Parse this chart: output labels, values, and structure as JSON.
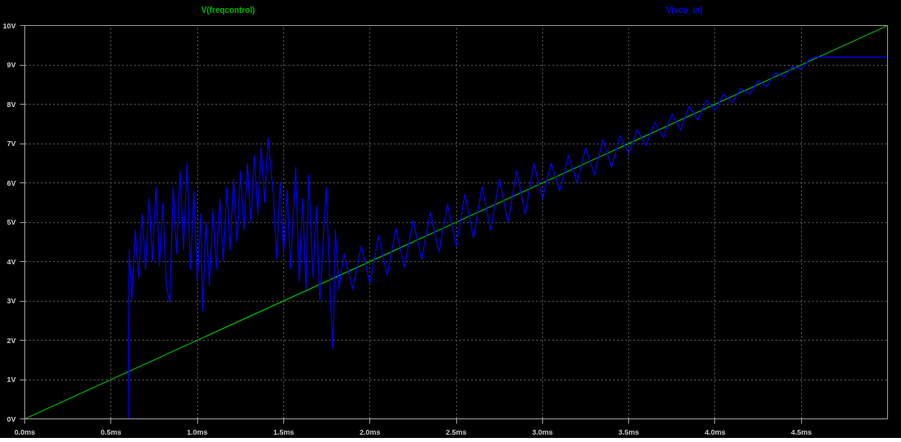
{
  "chart_data": {
    "type": "line",
    "xlim": [
      0,
      5
    ],
    "ylim": [
      0,
      10
    ],
    "xticks": [
      {
        "value": 0,
        "label": "0.0ms"
      },
      {
        "value": 0.5,
        "label": "0.5ms"
      },
      {
        "value": 1,
        "label": "1.0ms"
      },
      {
        "value": 1.5,
        "label": "1.5ms"
      },
      {
        "value": 2,
        "label": "2.0ms"
      },
      {
        "value": 2.5,
        "label": "2.5ms"
      },
      {
        "value": 3,
        "label": "3.0ms"
      },
      {
        "value": 3.5,
        "label": "3.5ms"
      },
      {
        "value": 4,
        "label": "4.0ms"
      },
      {
        "value": 4.5,
        "label": "4.5ms"
      }
    ],
    "yticks": [
      {
        "value": 0,
        "label": "0V"
      },
      {
        "value": 1,
        "label": "1V"
      },
      {
        "value": 2,
        "label": "2V"
      },
      {
        "value": 3,
        "label": "3V"
      },
      {
        "value": 4,
        "label": "4V"
      },
      {
        "value": 5,
        "label": "5V"
      },
      {
        "value": 6,
        "label": "6V"
      },
      {
        "value": 7,
        "label": "7V"
      },
      {
        "value": 8,
        "label": "8V"
      },
      {
        "value": 9,
        "label": "9V"
      },
      {
        "value": 10,
        "label": "10V"
      }
    ],
    "grid": true,
    "marker": "none",
    "line_style": "solid",
    "series": [
      {
        "name": "V(freqcontrol)",
        "color": "#00b400",
        "x": [
          0,
          5
        ],
        "values": [
          0,
          10
        ]
      },
      {
        "name": "V(vco_in)",
        "color": "#0000ff",
        "x": [
          0,
          0.6,
          0.605,
          0.62,
          0.64,
          0.66,
          0.68,
          0.7,
          0.72,
          0.74,
          0.76,
          0.78,
          0.8,
          0.82,
          0.84,
          0.86,
          0.88,
          0.9,
          0.92,
          0.94,
          0.96,
          0.98,
          1.0,
          1.02,
          1.03,
          1.05,
          1.07,
          1.09,
          1.11,
          1.13,
          1.15,
          1.17,
          1.19,
          1.21,
          1.23,
          1.25,
          1.27,
          1.29,
          1.31,
          1.33,
          1.35,
          1.37,
          1.39,
          1.41,
          1.44,
          1.46,
          1.48,
          1.5,
          1.52,
          1.54,
          1.57,
          1.59,
          1.61,
          1.63,
          1.645,
          1.67,
          1.69,
          1.71,
          1.73,
          1.747,
          1.77,
          1.786,
          1.8,
          1.82,
          1.85,
          1.9,
          1.95,
          2.0,
          2.05,
          2.1,
          2.15,
          2.2,
          2.25,
          2.3,
          2.35,
          2.4,
          2.45,
          2.5,
          2.55,
          2.6,
          2.65,
          2.7,
          2.75,
          2.8,
          2.85,
          2.9,
          2.95,
          3.0,
          3.05,
          3.1,
          3.15,
          3.2,
          3.25,
          3.3,
          3.35,
          3.4,
          3.45,
          3.5,
          3.55,
          3.6,
          3.65,
          3.7,
          3.75,
          3.8,
          3.85,
          3.9,
          3.95,
          4.0,
          4.05,
          4.1,
          4.15,
          4.2,
          4.25,
          4.3,
          4.35,
          4.4,
          4.45,
          4.5,
          4.55,
          4.58,
          5.0
        ],
        "values": [
          0,
          0,
          4.3,
          3.0,
          4.8,
          3.6,
          5.2,
          3.8,
          5.6,
          4.0,
          5.9,
          3.9,
          5.5,
          3.4,
          2.95,
          5.9,
          4.2,
          6.3,
          4.3,
          6.5,
          3.8,
          5.8,
          3.5,
          5.2,
          2.75,
          5.0,
          3.4,
          5.3,
          3.8,
          5.6,
          4.0,
          5.9,
          4.3,
          6.1,
          4.5,
          6.3,
          4.8,
          6.5,
          5.0,
          6.7,
          5.2,
          6.9,
          5.5,
          7.15,
          5.7,
          4.07,
          6.0,
          4.2,
          5.8,
          3.8,
          6.4,
          3.5,
          5.6,
          3.3,
          6.2,
          3.6,
          5.4,
          3.0,
          4.6,
          5.9,
          3.2,
          1.77,
          4.8,
          3.3,
          4.2,
          3.3,
          4.4,
          3.45,
          4.65,
          3.65,
          4.85,
          3.85,
          5.05,
          4.05,
          5.25,
          4.25,
          5.45,
          4.4,
          5.7,
          4.6,
          5.9,
          4.8,
          6.1,
          5.0,
          6.3,
          5.2,
          6.5,
          5.6,
          6.5,
          5.8,
          6.7,
          6.0,
          6.9,
          6.2,
          7.1,
          6.4,
          7.2,
          6.75,
          7.35,
          6.95,
          7.55,
          7.15,
          7.75,
          7.35,
          7.95,
          7.6,
          8.1,
          7.85,
          8.25,
          8.05,
          8.4,
          8.25,
          8.6,
          8.45,
          8.8,
          8.7,
          8.95,
          8.9,
          9.15,
          9.2,
          9.2
        ]
      }
    ]
  }
}
